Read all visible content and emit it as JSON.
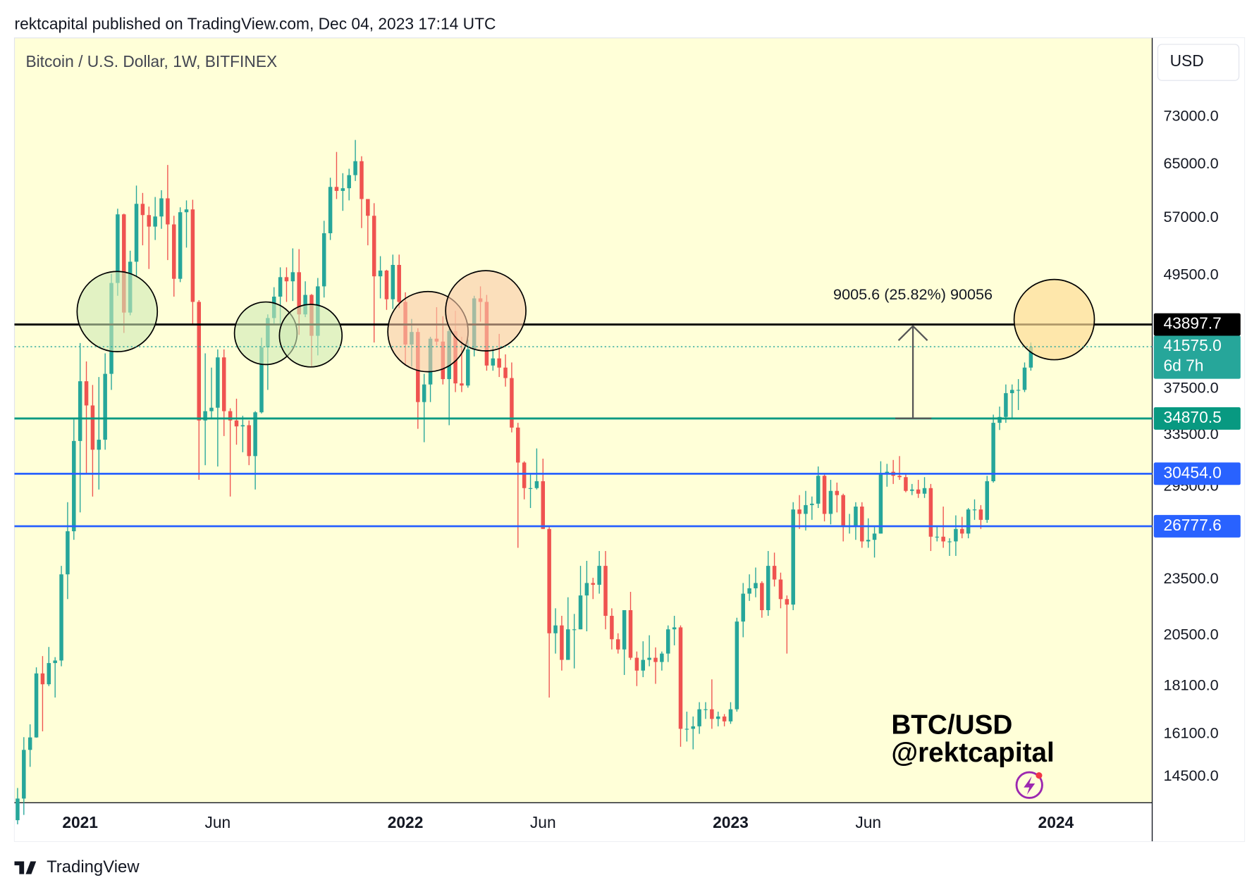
{
  "chart_data": {
    "type": "candlestick",
    "header": "rektcapital published on TradingView.com, Dec 04, 2023 17:14 UTC",
    "title": "Bitcoin / U.S. Dollar, 1W, BITFINEX",
    "currency": "USD",
    "log_scale": true,
    "up_color": "#26a69a",
    "down_color": "#ef5350",
    "ylim": [
      13600,
      88600
    ],
    "yticks": [
      {
        "value": 73000,
        "label": "73000.0"
      },
      {
        "value": 65000,
        "label": "65000.0"
      },
      {
        "value": 57000,
        "label": "57000.0"
      },
      {
        "value": 49500,
        "label": "49500.0"
      },
      {
        "value": 37500,
        "label": "37500.0"
      },
      {
        "value": 33500,
        "label": "33500.0"
      },
      {
        "value": 29500,
        "label": "29500.0"
      },
      {
        "value": 23500,
        "label": "23500.0"
      },
      {
        "value": 20500,
        "label": "20500.0"
      },
      {
        "value": 18100,
        "label": "18100.0"
      },
      {
        "value": 16100,
        "label": "16100.0"
      },
      {
        "value": 14500,
        "label": "14500.0"
      }
    ],
    "xlim": [
      -0.5,
      181.4
    ],
    "xticks": [
      {
        "value": 10,
        "label": "2021",
        "bold": true
      },
      {
        "value": 32,
        "label": "Jun",
        "bold": false
      },
      {
        "value": 62,
        "label": "2022",
        "bold": true
      },
      {
        "value": 84,
        "label": "Jun",
        "bold": false
      },
      {
        "value": 114,
        "label": "2023",
        "bold": true
      },
      {
        "value": 136,
        "label": "Jun",
        "bold": false
      },
      {
        "value": 166,
        "label": "2024",
        "bold": true
      }
    ],
    "levels": [
      {
        "value": 43897.7,
        "label": "43897.7",
        "color": "#000000"
      },
      {
        "value": 34870.5,
        "label": "34870.5",
        "color": "#089981"
      },
      {
        "value": 30454.0,
        "label": "30454.0",
        "color": "#2962ff"
      },
      {
        "value": 26777.6,
        "label": "26777.6",
        "color": "#2962ff"
      }
    ],
    "last_label": "41575.0",
    "countdown": "6d 7h",
    "last_color": "#26a69a",
    "measure": "9005.6 (25.82%) 90056",
    "watermark": [
      "BTC/USD",
      "@rektcapital"
    ],
    "footer": "TradingView",
    "ohlc": [
      [
        13030,
        14100,
        12900,
        13740
      ],
      [
        13740,
        15970,
        13200,
        15480
      ],
      [
        15480,
        16480,
        14850,
        15960
      ],
      [
        15960,
        18950,
        15950,
        18670
      ],
      [
        18670,
        19480,
        16200,
        18180
      ],
      [
        18180,
        19920,
        18100,
        19150
      ],
      [
        19150,
        19430,
        17600,
        19270
      ],
      [
        19270,
        24300,
        19000,
        23800
      ],
      [
        23800,
        28400,
        22400,
        26450
      ],
      [
        26450,
        34800,
        25900,
        33000
      ],
      [
        33000,
        41950,
        27700,
        38200
      ],
      [
        38200,
        40100,
        30400,
        36000
      ],
      [
        36000,
        37850,
        28800,
        32300
      ],
      [
        32300,
        38600,
        29300,
        33100
      ],
      [
        33100,
        40900,
        32300,
        38900
      ],
      [
        38900,
        49700,
        37400,
        48600
      ],
      [
        48600,
        58300,
        47100,
        57500
      ],
      [
        57500,
        57600,
        43000,
        45200
      ],
      [
        45200,
        52600,
        44900,
        51200
      ],
      [
        51200,
        61700,
        49300,
        59000
      ],
      [
        59000,
        60600,
        53300,
        57400
      ],
      [
        57400,
        58600,
        50300,
        55800
      ],
      [
        55800,
        60000,
        54000,
        57200
      ],
      [
        57200,
        61000,
        55500,
        59800
      ],
      [
        59800,
        64900,
        51400,
        56100
      ],
      [
        56100,
        57300,
        47000,
        49100
      ],
      [
        49100,
        58500,
        48700,
        57800
      ],
      [
        57800,
        59500,
        53000,
        58200
      ],
      [
        58200,
        59600,
        43900,
        46400
      ],
      [
        46400,
        46600,
        30000,
        34700
      ],
      [
        34700,
        40900,
        31100,
        35500
      ],
      [
        35500,
        39500,
        34800,
        35800
      ],
      [
        35800,
        41300,
        31000,
        40500
      ],
      [
        40500,
        41300,
        33400,
        35500
      ],
      [
        35500,
        35750,
        28800,
        34700
      ],
      [
        34700,
        36600,
        32700,
        34200
      ],
      [
        34200,
        35100,
        32100,
        34300
      ],
      [
        34300,
        34700,
        31100,
        31800
      ],
      [
        31800,
        35500,
        29300,
        35400
      ],
      [
        35400,
        42500,
        35300,
        41500
      ],
      [
        41500,
        45000,
        37400,
        44600
      ],
      [
        44600,
        48100,
        43800,
        47000
      ],
      [
        47000,
        50500,
        43900,
        49300
      ],
      [
        49300,
        50500,
        46400,
        48800
      ],
      [
        48800,
        52900,
        46500,
        49900
      ],
      [
        49900,
        52800,
        42800,
        45000
      ],
      [
        45000,
        48800,
        44700,
        47200
      ],
      [
        47200,
        47300,
        39600,
        42700
      ],
      [
        42700,
        49200,
        40700,
        48200
      ],
      [
        48200,
        56600,
        46900,
        54900
      ],
      [
        54900,
        62900,
        54000,
        61500
      ],
      [
        61500,
        67000,
        59700,
        60900
      ],
      [
        60900,
        63600,
        58000,
        61300
      ],
      [
        61300,
        64300,
        59500,
        63300
      ],
      [
        63300,
        69000,
        62400,
        65500
      ],
      [
        65500,
        66300,
        55600,
        59700
      ],
      [
        59700,
        59500,
        53300,
        57300
      ],
      [
        57300,
        59100,
        42000,
        49400
      ],
      [
        49400,
        51900,
        46800,
        50100
      ],
      [
        50100,
        50200,
        45500,
        46700
      ],
      [
        46700,
        52100,
        45600,
        50800
      ],
      [
        50800,
        52100,
        45700,
        46400
      ],
      [
        46400,
        47500,
        39700,
        41800
      ],
      [
        41800,
        44500,
        39600,
        43100
      ],
      [
        43100,
        43500,
        34000,
        36300
      ],
      [
        36300,
        38900,
        32900,
        37900
      ],
      [
        37900,
        42600,
        36300,
        42400
      ],
      [
        42400,
        45800,
        41700,
        42100
      ],
      [
        42100,
        44800,
        37900,
        38400
      ],
      [
        38400,
        43400,
        34300,
        43200
      ],
      [
        43200,
        45400,
        37200,
        38000
      ],
      [
        38000,
        42600,
        37200,
        37800
      ],
      [
        37800,
        42300,
        37600,
        41300
      ],
      [
        41300,
        47100,
        40600,
        46800
      ],
      [
        46800,
        48200,
        44200,
        46400
      ],
      [
        46400,
        47200,
        39200,
        39700
      ],
      [
        39700,
        41500,
        39200,
        40400
      ],
      [
        40400,
        42900,
        38600,
        39500
      ],
      [
        39500,
        40800,
        37700,
        38500
      ],
      [
        38500,
        40000,
        33700,
        34100
      ],
      [
        34100,
        34500,
        25400,
        31300
      ],
      [
        31300,
        31400,
        28600,
        29400
      ],
      [
        29400,
        30500,
        28000,
        29400
      ],
      [
        29400,
        32400,
        29300,
        29900
      ],
      [
        29900,
        31600,
        26600,
        26600
      ],
      [
        26600,
        26800,
        17600,
        20600
      ],
      [
        20600,
        21900,
        19600,
        21000
      ],
      [
        21000,
        21500,
        18800,
        19300
      ],
      [
        19300,
        22500,
        19300,
        20800
      ],
      [
        20800,
        21600,
        18900,
        20800
      ],
      [
        20800,
        24300,
        20800,
        22600
      ],
      [
        22600,
        24600,
        20700,
        23300
      ],
      [
        23300,
        23600,
        22400,
        23200
      ],
      [
        23200,
        25200,
        22700,
        24300
      ],
      [
        24300,
        25200,
        20800,
        21500
      ],
      [
        21500,
        21900,
        19800,
        20300
      ],
      [
        20300,
        20600,
        19600,
        19800
      ],
      [
        19800,
        21800,
        18600,
        21800
      ],
      [
        21800,
        22800,
        19300,
        19400
      ],
      [
        19400,
        19700,
        18100,
        18800
      ],
      [
        18800,
        20200,
        18500,
        19300
      ],
      [
        19300,
        20500,
        19000,
        19400
      ],
      [
        19400,
        19900,
        18200,
        19200
      ],
      [
        19200,
        19700,
        18800,
        19600
      ],
      [
        19600,
        21000,
        19200,
        20800
      ],
      [
        20800,
        21500,
        20000,
        20900
      ],
      [
        20900,
        21000,
        15600,
        16300
      ],
      [
        16300,
        17000,
        15800,
        16300
      ],
      [
        16300,
        16800,
        15500,
        16400
      ],
      [
        16400,
        17400,
        16100,
        17100
      ],
      [
        17100,
        17400,
        16700,
        17100
      ],
      [
        17100,
        18400,
        16300,
        16700
      ],
      [
        16700,
        17000,
        16400,
        16800
      ],
      [
        16800,
        16900,
        16400,
        16600
      ],
      [
        16600,
        17400,
        16500,
        17100
      ],
      [
        17100,
        21400,
        17000,
        21200
      ],
      [
        21200,
        23300,
        20400,
        22700
      ],
      [
        22700,
        23800,
        22300,
        23000
      ],
      [
        23000,
        24200,
        22500,
        23300
      ],
      [
        23300,
        23400,
        21400,
        21800
      ],
      [
        21800,
        25200,
        21500,
        24300
      ],
      [
        24300,
        25100,
        23100,
        23500
      ],
      [
        23500,
        23900,
        21900,
        22400
      ],
      [
        22400,
        22600,
        19600,
        22100
      ],
      [
        22100,
        28400,
        21800,
        27900
      ],
      [
        27900,
        28900,
        26600,
        27600
      ],
      [
        27600,
        29200,
        26500,
        28200
      ],
      [
        28200,
        28800,
        27200,
        28300
      ],
      [
        28300,
        31000,
        28000,
        30300
      ],
      [
        30300,
        30500,
        27100,
        27600
      ],
      [
        27600,
        30000,
        26900,
        29200
      ],
      [
        29200,
        29800,
        27700,
        28900
      ],
      [
        28900,
        29000,
        25800,
        26800
      ],
      [
        26800,
        27600,
        26300,
        26800
      ],
      [
        26800,
        28400,
        25900,
        28100
      ],
      [
        28100,
        28400,
        25400,
        25800
      ],
      [
        25800,
        27300,
        25400,
        25900
      ],
      [
        25900,
        26800,
        24800,
        26300
      ],
      [
        26300,
        31400,
        26300,
        30500
      ],
      [
        30500,
        31200,
        29500,
        30600
      ],
      [
        30600,
        31500,
        29700,
        30300
      ],
      [
        30300,
        31800,
        30000,
        30200
      ],
      [
        30200,
        30400,
        29100,
        29200
      ],
      [
        29200,
        29700,
        28900,
        29300
      ],
      [
        29300,
        30000,
        28700,
        29000
      ],
      [
        29000,
        30200,
        28700,
        29400
      ],
      [
        29400,
        29700,
        25200,
        26100
      ],
      [
        26100,
        26800,
        25800,
        26100
      ],
      [
        26100,
        28100,
        25400,
        25800
      ],
      [
        25800,
        26000,
        24900,
        25800
      ],
      [
        25800,
        27500,
        24900,
        26600
      ],
      [
        26600,
        27400,
        26000,
        26300
      ],
      [
        26300,
        28000,
        26000,
        27900
      ],
      [
        27900,
        28600,
        27200,
        27900
      ],
      [
        27900,
        28200,
        26600,
        27200
      ],
      [
        27200,
        30300,
        27000,
        29900
      ],
      [
        29900,
        35200,
        29800,
        34500
      ],
      [
        34500,
        35900,
        33900,
        35000
      ],
      [
        35000,
        37900,
        34500,
        37100
      ],
      [
        37100,
        37900,
        34800,
        37400
      ],
      [
        37400,
        38400,
        35600,
        37400
      ],
      [
        37400,
        40000,
        37200,
        39500
      ],
      [
        39500,
        42000,
        39200,
        41575
      ]
    ]
  }
}
